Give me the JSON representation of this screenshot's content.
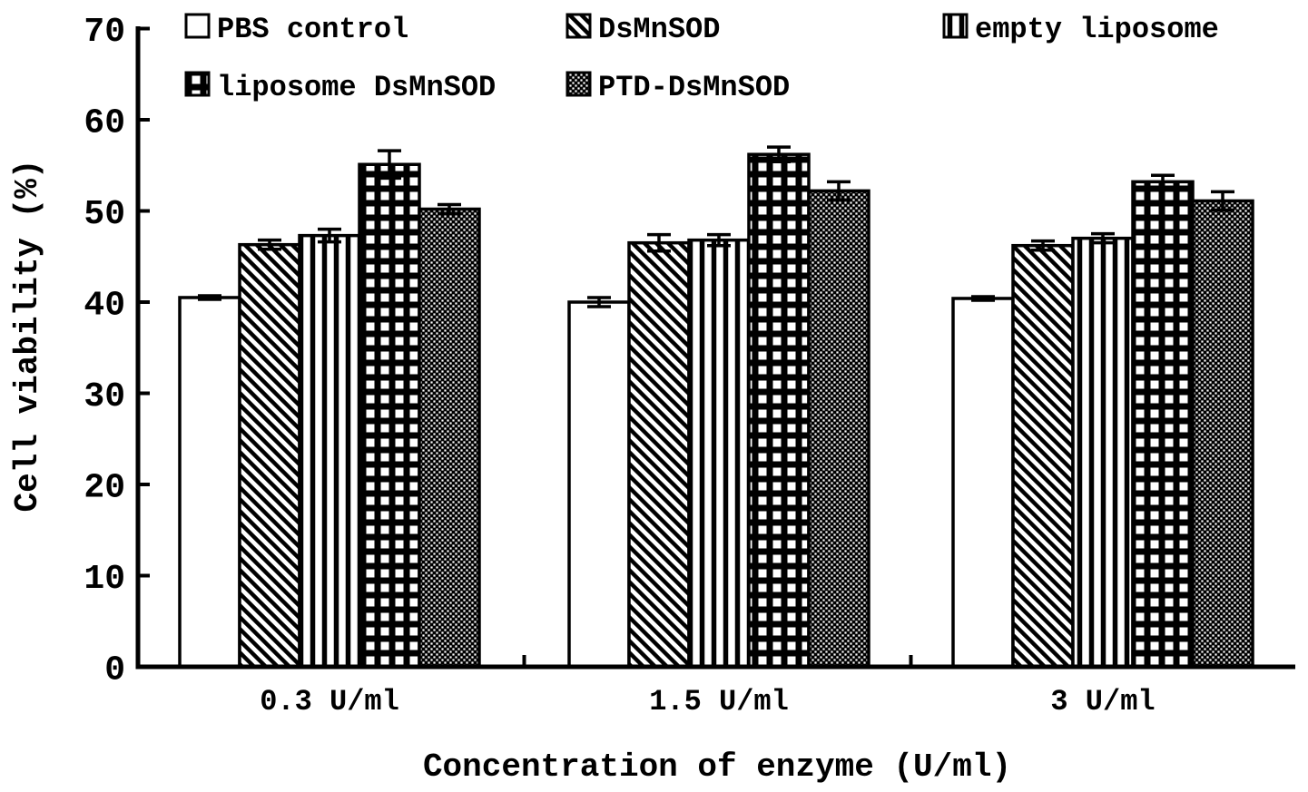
{
  "figure": {
    "background_color": "#ffffff",
    "ink_color": "#000000"
  },
  "chart_data": {
    "type": "bar",
    "title": "",
    "xlabel": "Concentration of enzyme (U/ml)",
    "ylabel": "Cell viability (%)",
    "ylim": [
      0,
      70
    ],
    "yticks": [
      0,
      10,
      20,
      30,
      40,
      50,
      60,
      70
    ],
    "grid": false,
    "legend_position": "top",
    "categories": [
      "0.3 U/ml",
      "1.5 U/ml",
      "3 U/ml"
    ],
    "series": [
      {
        "name": "PBS control",
        "pattern": "solid-white",
        "values": [
          40.5,
          40.0,
          40.4
        ],
        "errors": [
          0.2,
          0.5,
          0.2
        ]
      },
      {
        "name": "DsMnSOD",
        "pattern": "diagonal",
        "values": [
          46.3,
          46.5,
          46.2
        ],
        "errors": [
          0.5,
          0.9,
          0.5
        ]
      },
      {
        "name": "empty liposome",
        "pattern": "vertical",
        "values": [
          47.3,
          46.8,
          47.0
        ],
        "errors": [
          0.7,
          0.6,
          0.5
        ]
      },
      {
        "name": "liposome DsMnSOD",
        "pattern": "grid",
        "values": [
          55.1,
          56.2,
          53.2
        ],
        "errors": [
          1.5,
          0.8,
          0.7
        ]
      },
      {
        "name": "PTD-DsMnSOD",
        "pattern": "dots",
        "values": [
          50.2,
          52.2,
          51.1
        ],
        "errors": [
          0.5,
          1.0,
          1.0
        ]
      }
    ]
  }
}
